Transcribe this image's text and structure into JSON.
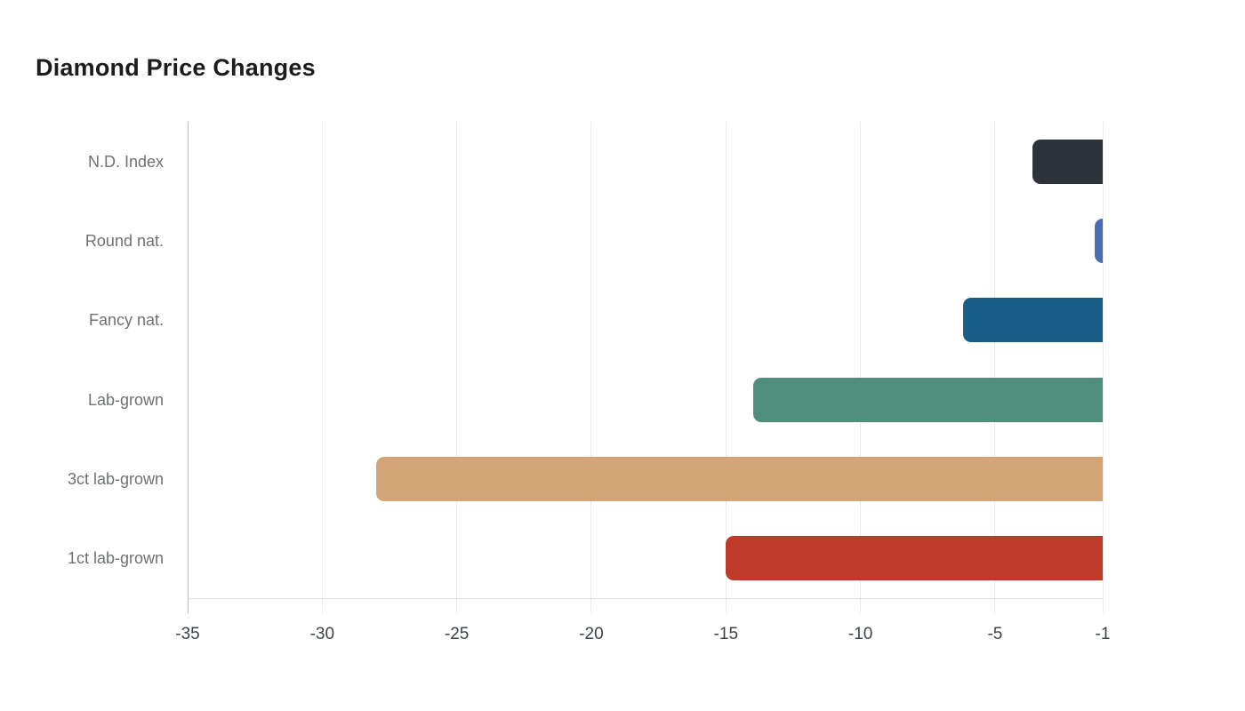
{
  "title": "Diamond Price Changes",
  "chart_data": {
    "type": "bar",
    "orientation": "horizontal",
    "title": "Diamond Price Changes",
    "xlabel": "",
    "ylabel": "",
    "categories": [
      "N.D. Index",
      "Round nat.",
      "Fancy nat.",
      "Lab-grown",
      "3ct lab-grown",
      "1ct lab-grown"
    ],
    "values": [
      -3.6,
      -1.3,
      -6.2,
      -14,
      -28,
      -15
    ],
    "bar_colors": [
      "#2e333b",
      "#4a6db4",
      "#195e88",
      "#4f8d7d",
      "#d3a476",
      "#c03a2c"
    ],
    "bar_patterns": [
      "dots",
      null,
      null,
      null,
      null,
      null
    ],
    "xlim": [
      -35,
      -1
    ],
    "x_ticks": [
      -35,
      -30,
      -25,
      -20,
      -15,
      -10,
      -5,
      -1
    ],
    "x_tick_labels": [
      "-35",
      "-30",
      "-25",
      "-20",
      "-15",
      "-10",
      "-5",
      "-1"
    ],
    "bars_clipped_at": -1,
    "grid": true,
    "legend": false
  },
  "colors": {
    "background": "#ffffff",
    "gridline": "#e9eaeb",
    "axis_line": "#bcbfc1",
    "bottom_axis_line": "#e0e1e2",
    "tick_text": "#3c4347",
    "category_text": "#6e7273",
    "title_text": "#1c1c1c",
    "decal_dot": "#14171c"
  }
}
